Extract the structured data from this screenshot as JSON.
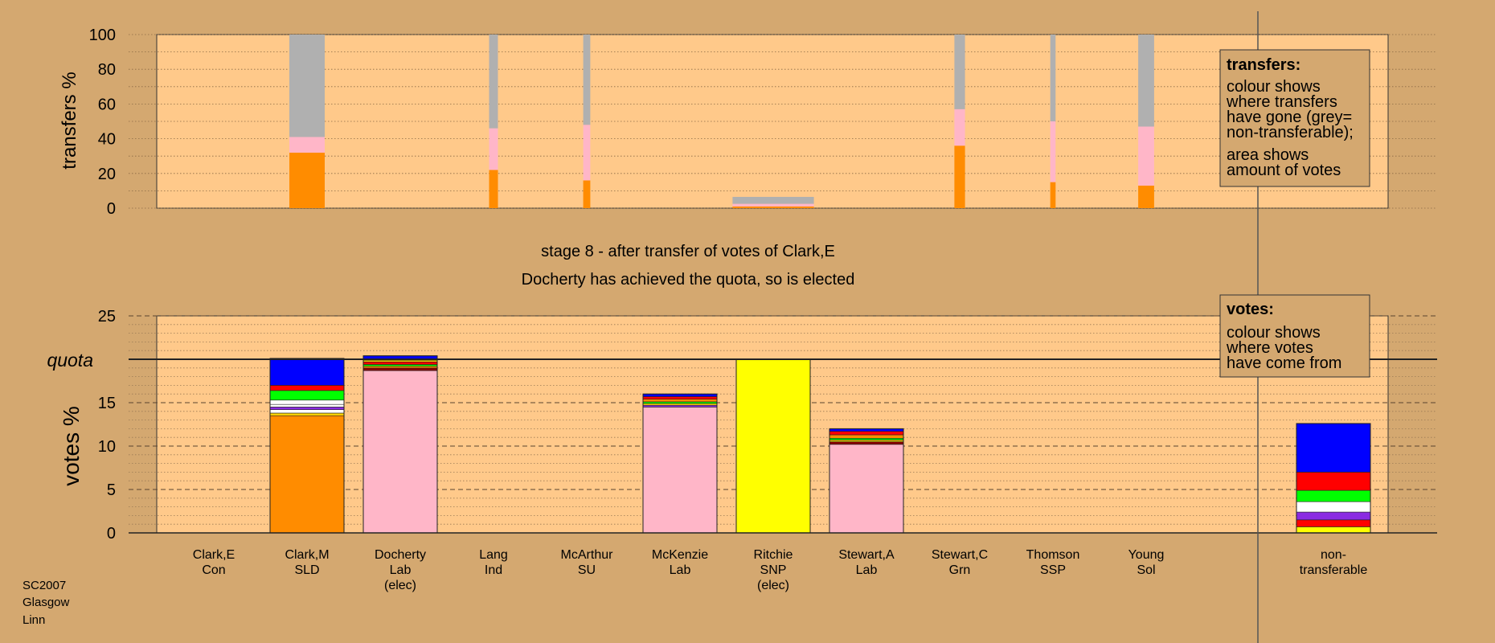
{
  "chart_data": [
    {
      "type": "bar",
      "subtype": "stacked",
      "ylabel": "transfers %",
      "ylim": [
        0,
        100
      ],
      "yticks": [
        0,
        20,
        40,
        60,
        80,
        100
      ],
      "grid": true,
      "series": [
        {
          "name": "Clark,E",
          "segments": []
        },
        {
          "name": "Clark,M",
          "segments": [
            {
              "color": "#ff8c00",
              "value": 32
            },
            {
              "color": "#ffb6c8",
              "value": 9
            },
            {
              "color": "#b0b0b0",
              "value": 59
            }
          ]
        },
        {
          "name": "Docherty",
          "segments": []
        },
        {
          "name": "Lang",
          "segments": [
            {
              "color": "#ff8c00",
              "value": 22
            },
            {
              "color": "#ffb6c8",
              "value": 24
            },
            {
              "color": "#b0b0b0",
              "value": 54
            }
          ]
        },
        {
          "name": "McArthur",
          "segments": [
            {
              "color": "#ff8c00",
              "value": 16
            },
            {
              "color": "#ffb6c8",
              "value": 32
            },
            {
              "color": "#b0b0b0",
              "value": 52
            }
          ]
        },
        {
          "name": "McKenzie",
          "segments": []
        },
        {
          "name": "Ritchie",
          "segments": [
            {
              "color": "#ff8c00",
              "value": 1
            },
            {
              "color": "#ffb6c8",
              "value": 1.5
            },
            {
              "color": "#b0b0b0",
              "value": 4
            }
          ]
        },
        {
          "name": "Stewart,A",
          "segments": []
        },
        {
          "name": "Stewart,C",
          "segments": [
            {
              "color": "#ff8c00",
              "value": 36
            },
            {
              "color": "#ffb6c8",
              "value": 21
            },
            {
              "color": "#b0b0b0",
              "value": 43
            }
          ]
        },
        {
          "name": "Thomson",
          "segments": [
            {
              "color": "#ff8c00",
              "value": 15
            },
            {
              "color": "#ffb6c8",
              "value": 35
            },
            {
              "color": "#b0b0b0",
              "value": 50
            }
          ]
        },
        {
          "name": "Young",
          "segments": [
            {
              "color": "#ff8c00",
              "value": 13
            },
            {
              "color": "#ffb6c8",
              "value": 34
            },
            {
              "color": "#b0b0b0",
              "value": 53
            }
          ]
        }
      ],
      "bar_width_scale": [
        0,
        1,
        0,
        0.25,
        0.2,
        0,
        2.3,
        0,
        0.3,
        0.15,
        0.45
      ],
      "legend": {
        "position": "right",
        "title": "transfers:",
        "lines_a": [
          "colour shows",
          "where transfers",
          "have gone (grey=",
          "non-transferable);"
        ],
        "lines_b": [
          "area shows",
          "amount of votes"
        ]
      }
    },
    {
      "type": "bar",
      "subtype": "stacked",
      "ylabel": "votes %",
      "ylim": [
        0,
        25
      ],
      "yticks": [
        0,
        5,
        10,
        15,
        20,
        25
      ],
      "quota": 20,
      "quota_label": "quota",
      "grid": true,
      "series": [
        {
          "name": "Clark,E",
          "segments": []
        },
        {
          "name": "Clark,M",
          "segments": [
            {
              "color": "#ff8c00",
              "value": 13.5
            },
            {
              "color": "#ffd700",
              "value": 0.3
            },
            {
              "color": "#ffffff",
              "value": 0.4
            },
            {
              "color": "#8a2be2",
              "value": 0.3
            },
            {
              "color": "#ffffff",
              "value": 0.3
            },
            {
              "color": "#ffffff",
              "value": 0.5
            },
            {
              "color": "#00ff00",
              "value": 1.1
            },
            {
              "color": "#ff0000",
              "value": 0.6
            },
            {
              "color": "#0000ff",
              "value": 3.1
            }
          ]
        },
        {
          "name": "Docherty",
          "segments": [
            {
              "color": "#ffb6c8",
              "value": 18.7
            },
            {
              "color": "#8b0000",
              "value": 0.3
            },
            {
              "color": "#ff8c00",
              "value": 0.2
            },
            {
              "color": "#00ff00",
              "value": 0.2
            },
            {
              "color": "#ff0000",
              "value": 0.3
            },
            {
              "color": "#ffd700",
              "value": 0.2
            },
            {
              "color": "#0000ff",
              "value": 0.5
            }
          ]
        },
        {
          "name": "Lang",
          "segments": []
        },
        {
          "name": "McArthur",
          "segments": []
        },
        {
          "name": "McKenzie",
          "segments": [
            {
              "color": "#ffb6c8",
              "value": 14.5
            },
            {
              "color": "#8a2be2",
              "value": 0.2
            },
            {
              "color": "#ffd700",
              "value": 0.2
            },
            {
              "color": "#00ff00",
              "value": 0.2
            },
            {
              "color": "#ff8c00",
              "value": 0.3
            },
            {
              "color": "#ff0000",
              "value": 0.3
            },
            {
              "color": "#0000ff",
              "value": 0.3
            }
          ]
        },
        {
          "name": "Ritchie",
          "segments": [
            {
              "color": "#ffff00",
              "value": 20.0
            }
          ]
        },
        {
          "name": "Stewart,A",
          "segments": [
            {
              "color": "#ffb6c8",
              "value": 10.2
            },
            {
              "color": "#8b0000",
              "value": 0.3
            },
            {
              "color": "#ffd700",
              "value": 0.2
            },
            {
              "color": "#00ff00",
              "value": 0.2
            },
            {
              "color": "#ff8c00",
              "value": 0.4
            },
            {
              "color": "#ff0000",
              "value": 0.4
            },
            {
              "color": "#0000ff",
              "value": 0.3
            }
          ]
        },
        {
          "name": "Stewart,C",
          "segments": []
        },
        {
          "name": "Thomson",
          "segments": []
        },
        {
          "name": "Young",
          "segments": []
        },
        {
          "name": "non-transferable",
          "segments": [
            {
              "color": "#ffff00",
              "value": 0.7
            },
            {
              "color": "#ff0000",
              "value": 0.8
            },
            {
              "color": "#8a2be2",
              "value": 0.9
            },
            {
              "color": "#ffffff",
              "value": 1.2
            },
            {
              "color": "#00ff00",
              "value": 1.3
            },
            {
              "color": "#ff0000",
              "value": 2.1
            },
            {
              "color": "#0000ff",
              "value": 5.6
            }
          ]
        }
      ],
      "legend": {
        "position": "right",
        "title": "votes:",
        "lines_a": [
          "colour shows",
          "where votes",
          "have come from"
        ]
      }
    }
  ],
  "categories": [
    [
      "Clark,E",
      "Con"
    ],
    [
      "Clark,M",
      "SLD"
    ],
    [
      "Docherty",
      "Lab",
      "(elec)"
    ],
    [
      "Lang",
      "Ind"
    ],
    [
      "McArthur",
      "SU"
    ],
    [
      "McKenzie",
      "Lab"
    ],
    [
      "Ritchie",
      "SNP",
      "(elec)"
    ],
    [
      "Stewart,A",
      "Lab"
    ],
    [
      "Stewart,C",
      "Grn"
    ],
    [
      "Thomson",
      "SSP"
    ],
    [
      "Young",
      "Sol"
    ],
    [
      "non-",
      "transferable"
    ]
  ],
  "stage_title": "stage 8 - after transfer of votes of Clark,E",
  "stage_subtitle": "Docherty has achieved the quota, so is elected",
  "footer": [
    "SC2007",
    "Glasgow",
    "Linn"
  ],
  "colors": {
    "background": "#d4a870",
    "plot_background": "#ffc98a",
    "legend_background": "#d4a870"
  }
}
